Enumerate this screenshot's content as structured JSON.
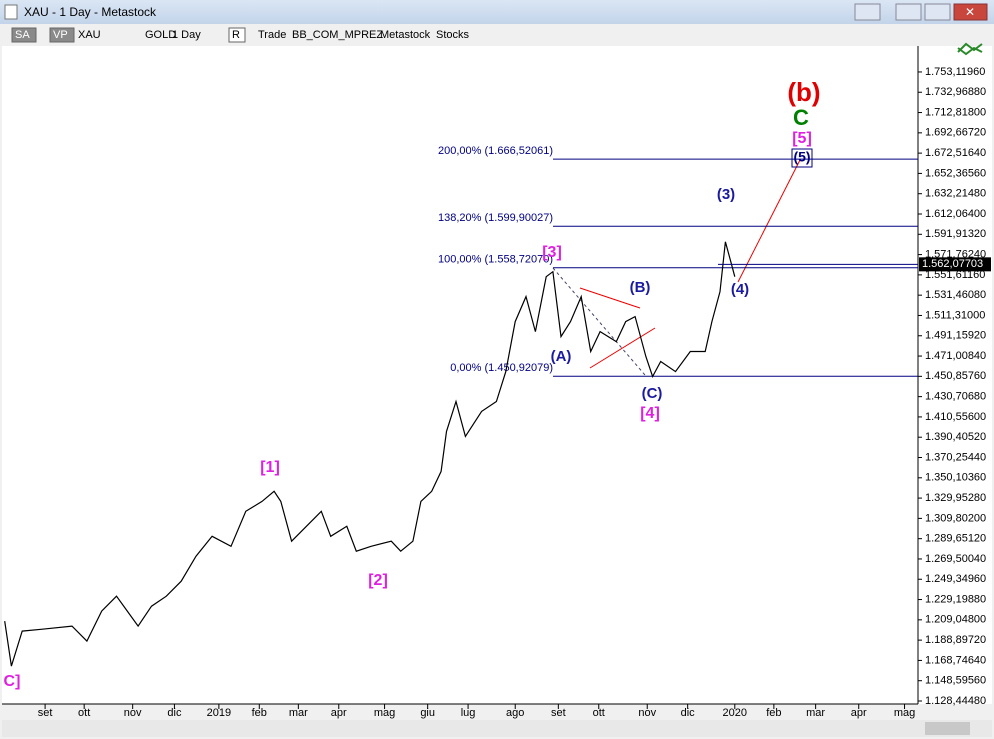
{
  "window": {
    "title": "XAU - 1 Day - Metastock"
  },
  "toolbar": {
    "items": [
      "SA",
      "VP",
      "XAU",
      "GOLD",
      "1 Day",
      "R",
      "Trade",
      "BB_COM_MPREZ",
      "Metastock",
      "Stocks"
    ]
  },
  "chart_data": {
    "type": "line",
    "color": "#000000",
    "x": [
      2,
      7,
      15,
      30,
      52,
      63,
      74,
      85,
      93,
      101,
      111,
      122,
      133,
      144,
      156,
      170,
      181,
      193,
      202,
      207,
      215,
      226,
      237,
      244,
      256,
      263,
      274,
      289,
      296,
      305,
      311,
      319,
      326,
      330,
      337,
      344,
      356,
      367,
      374,
      381,
      389,
      396,
      404,
      409,
      415,
      422,
      430,
      437,
      444,
      456,
      463,
      470,
      478,
      483,
      489,
      500,
      511,
      522,
      527,
      533,
      537,
      541,
      544
    ],
    "values": [
      1207.8,
      1163.1,
      1197.9,
      1199.8,
      1202.8,
      1187.9,
      1217.7,
      1232.5,
      1217.7,
      1202.8,
      1222.6,
      1232.5,
      1247.4,
      1272.2,
      1292.0,
      1282.1,
      1316.8,
      1326.7,
      1336.7,
      1326.7,
      1287.1,
      1301.9,
      1316.8,
      1292.0,
      1301.9,
      1277.2,
      1282.1,
      1287.1,
      1277.2,
      1287.1,
      1326.7,
      1336.7,
      1356.5,
      1396.2,
      1425.9,
      1391.2,
      1416.0,
      1425.9,
      1455.6,
      1505.2,
      1530.0,
      1495.3,
      1549.8,
      1554.8,
      1490.3,
      1505.2,
      1530.0,
      1475.5,
      1495.3,
      1485.4,
      1505.2,
      1510.2,
      1470.5,
      1450.7,
      1465.6,
      1455.6,
      1475.5,
      1475.5,
      1505.2,
      1535.0,
      1584.5,
      1564.7,
      1549.8
    ],
    "xlim": [
      0,
      680
    ],
    "xticks": [
      {
        "value": 32,
        "label": "set"
      },
      {
        "value": 61,
        "label": "ott"
      },
      {
        "value": 97,
        "label": "nov"
      },
      {
        "value": 128,
        "label": "dic"
      },
      {
        "value": 161,
        "label": "2019"
      },
      {
        "value": 191,
        "label": "feb"
      },
      {
        "value": 220,
        "label": "mar"
      },
      {
        "value": 250,
        "label": "apr"
      },
      {
        "value": 284,
        "label": "mag"
      },
      {
        "value": 316,
        "label": "giu"
      },
      {
        "value": 346,
        "label": "lug"
      },
      {
        "value": 381,
        "label": "ago"
      },
      {
        "value": 413,
        "label": "set"
      },
      {
        "value": 443,
        "label": "ott"
      },
      {
        "value": 479,
        "label": "nov"
      },
      {
        "value": 509,
        "label": "dic"
      },
      {
        "value": 544,
        "label": "2020"
      },
      {
        "value": 573,
        "label": "feb"
      },
      {
        "value": 604,
        "label": "mar"
      },
      {
        "value": 636,
        "label": "apr"
      },
      {
        "value": 670,
        "label": "mag"
      }
    ],
    "ylim": [
      1125.47,
      1778.9
    ],
    "yticks": [
      {
        "value": 1753.1196,
        "label": "1.753,11960"
      },
      {
        "value": 1732.9688,
        "label": "1.732,96880"
      },
      {
        "value": 1712.818,
        "label": "1.712,81800"
      },
      {
        "value": 1692.6672,
        "label": "1.692,66720"
      },
      {
        "value": 1672.5164,
        "label": "1.672,51640"
      },
      {
        "value": 1652.3656,
        "label": "1.652,36560"
      },
      {
        "value": 1632.2148,
        "label": "1.632,21480"
      },
      {
        "value": 1612.064,
        "label": "1.612,06400"
      },
      {
        "value": 1591.9132,
        "label": "1.591,91320"
      },
      {
        "value": 1571.7624,
        "label": "1.571,76240"
      },
      {
        "value": 1551.6116,
        "label": "1.551,61160"
      },
      {
        "value": 1531.4608,
        "label": "1.531,46080"
      },
      {
        "value": 1511.31,
        "label": "1.511,31000"
      },
      {
        "value": 1491.1592,
        "label": "1.491,15920"
      },
      {
        "value": 1471.0084,
        "label": "1.471,00840"
      },
      {
        "value": 1450.8576,
        "label": "1.450,85760"
      },
      {
        "value": 1430.7068,
        "label": "1.430,70680"
      },
      {
        "value": 1410.556,
        "label": "1.410,55600"
      },
      {
        "value": 1390.4052,
        "label": "1.390,40520"
      },
      {
        "value": 1370.2544,
        "label": "1.370,25440"
      },
      {
        "value": 1350.1036,
        "label": "1.350,10360"
      },
      {
        "value": 1329.9528,
        "label": "1.329,95280"
      },
      {
        "value": 1309.802,
        "label": "1.309,80200"
      },
      {
        "value": 1289.6512,
        "label": "1.289,65120"
      },
      {
        "value": 1269.5004,
        "label": "1.269,50040"
      },
      {
        "value": 1249.3496,
        "label": "1.249,34960"
      },
      {
        "value": 1229.1988,
        "label": "1.229,19880"
      },
      {
        "value": 1209.048,
        "label": "1.209,04800"
      },
      {
        "value": 1188.8972,
        "label": "1.188,89720"
      },
      {
        "value": 1168.7464,
        "label": "1.168,74640"
      },
      {
        "value": 1148.5956,
        "label": "1.148,59560"
      },
      {
        "value": 1128.4448,
        "label": "1.128,44480"
      }
    ],
    "fib_levels": [
      {
        "value": 1666.52061,
        "label": "200,00% (1.666,52061)"
      },
      {
        "value": 1599.90027,
        "label": "138,20% (1.599,90027)"
      },
      {
        "value": 1558.7207,
        "label": "100,00% (1.558,72070)"
      },
      {
        "value": 1450.92079,
        "label": "0,00% (1.450,92079)"
      }
    ],
    "last_price": {
      "value": 1562.07703,
      "label": "1.562,07703"
    },
    "annotations": [
      {
        "text": "(b)",
        "color": "#e00000"
      },
      {
        "text": "C",
        "color": "#008000"
      },
      {
        "text": "[5]",
        "color": "#e020e0"
      },
      {
        "text": "(5)",
        "color": "#000080"
      },
      {
        "text": "(3)",
        "color": "#1a1aa0"
      },
      {
        "text": "(4)",
        "color": "#1a1aa0"
      },
      {
        "text": "[3]",
        "color": "#e020e0"
      },
      {
        "text": "(B)",
        "color": "#1a1aa0"
      },
      {
        "text": "(A)",
        "color": "#1a1aa0"
      },
      {
        "text": "(C)",
        "color": "#1a1aa0"
      },
      {
        "text": "[4]",
        "color": "#e020e0"
      },
      {
        "text": "[1]",
        "color": "#e020e0"
      },
      {
        "text": "[2]",
        "color": "#e020e0"
      },
      {
        "text": "C]",
        "color": "#e020e0"
      }
    ]
  }
}
